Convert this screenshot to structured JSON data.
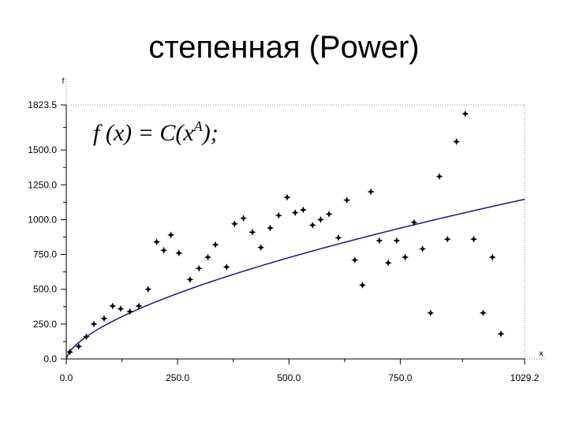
{
  "title": "степенная (Power)",
  "chart_data": {
    "type": "scatter",
    "formula": "f(x) = C(x^A);",
    "xlabel": "x",
    "ylabel": "f",
    "xlim": [
      0,
      1029.2
    ],
    "ylim": [
      0,
      1823.5
    ],
    "xticks": [
      "0.0",
      "250.0",
      "500.0",
      "750.0",
      "1029.2"
    ],
    "xtick_values": [
      0,
      250,
      500,
      750,
      1029.2
    ],
    "yticks": [
      "0.0",
      "250.0",
      "500.0",
      "750.0",
      "1000.0",
      "1250.0",
      "1500.0",
      "1823.5"
    ],
    "ytick_values": [
      0,
      250,
      500,
      750,
      1000,
      1250,
      1500,
      1823.5
    ],
    "grid": false,
    "colors": {
      "points": "#000000",
      "fit": "#1a1a7a",
      "axes": "#000000"
    },
    "points": {
      "x": [
        8,
        28,
        45,
        62,
        85,
        104,
        122,
        143,
        163,
        184,
        203,
        219,
        235,
        253,
        278,
        298,
        318,
        335,
        360,
        378,
        398,
        418,
        437,
        458,
        477,
        496,
        514,
        532,
        553,
        571,
        590,
        611,
        630,
        648,
        665,
        684,
        703,
        723,
        742,
        761,
        781,
        800,
        818,
        838,
        856,
        876,
        896,
        915,
        936,
        957,
        976
      ],
      "y": [
        50,
        90,
        160,
        250,
        290,
        380,
        360,
        340,
        380,
        500,
        840,
        780,
        890,
        760,
        570,
        650,
        730,
        820,
        660,
        970,
        1010,
        910,
        800,
        940,
        1030,
        1160,
        1050,
        1070,
        960,
        1000,
        1040,
        870,
        1140,
        710,
        530,
        1200,
        850,
        690,
        850,
        730,
        980,
        790,
        330,
        1310,
        860,
        1560,
        1760,
        860,
        330,
        730,
        180
      ]
    },
    "fit": {
      "C": 14.5,
      "A": 0.63,
      "x_from": 0,
      "x_to": 1029.2
    }
  }
}
